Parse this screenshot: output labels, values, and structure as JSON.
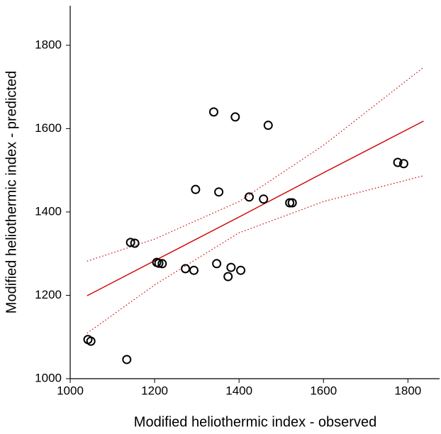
{
  "chart_data": {
    "type": "scatter",
    "xlabel": "Modified heliothermic index - observed",
    "ylabel": "Modified heliothermic index - predicted",
    "x": [
      1042,
      1049,
      1134,
      1143,
      1153,
      1205,
      1210,
      1218,
      1273,
      1293,
      1297,
      1340,
      1347,
      1352,
      1381,
      1374,
      1391,
      1404,
      1424,
      1458,
      1469,
      1520,
      1526,
      1776,
      1790
    ],
    "series": [
      {
        "color": "#000000",
        "values": [
          1094,
          1090,
          1046,
          1327,
          1325,
          1279,
          1277,
          1276,
          1264,
          1260,
          1454,
          1640,
          1276,
          1448,
          1267,
          1245,
          1628,
          1260,
          1436,
          1431,
          1608,
          1422,
          1422,
          1519,
          1516
        ]
      }
    ],
    "fit": {
      "color": "#d00000",
      "x": [
        1040,
        1200,
        1400,
        1600,
        1837
      ],
      "values": [
        1199,
        1283,
        1388,
        1494,
        1618
      ],
      "upper": [
        1282,
        1335,
        1425,
        1560,
        1747
      ],
      "lower": [
        1109,
        1225,
        1350,
        1425,
        1487
      ]
    },
    "xlim": [
      1000,
      1875
    ],
    "ylim": [
      1000,
      1895
    ],
    "xticks": [
      1000,
      1200,
      1400,
      1600,
      1800
    ],
    "yticks": [
      1000,
      1200,
      1400,
      1600,
      1800
    ]
  }
}
